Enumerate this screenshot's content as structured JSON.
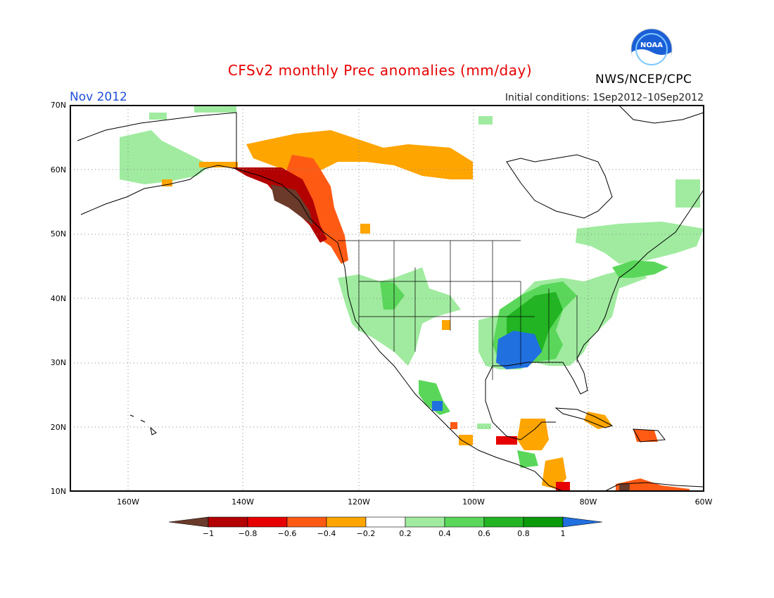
{
  "header": {
    "title": "CFSv2 monthly Prec anomalies (mm/day)",
    "month": "Nov 2012",
    "initial_conditions": "Initial conditions: 1Sep2012–10Sep2012",
    "agency": "NWS/NCEP/CPC",
    "logo_text": "NOAA"
  },
  "axes": {
    "lat_labels": [
      "70N",
      "60N",
      "50N",
      "40N",
      "30N",
      "20N",
      "10N"
    ],
    "lon_labels": [
      "160W",
      "140W",
      "120W",
      "100W",
      "80W",
      "60W"
    ]
  },
  "colorbar": {
    "labels": [
      "−1",
      "−0.8",
      "−0.6",
      "−0.4",
      "−0.2",
      "0.2",
      "0.4",
      "0.6",
      "0.8",
      "1"
    ],
    "colors": [
      "#6b3a2a",
      "#b30000",
      "#e60000",
      "#ff5a14",
      "#ffa500",
      "#ffffff",
      "#a0eba0",
      "#5ad75a",
      "#22b422",
      "#0a9a0a",
      "#2070e0"
    ]
  },
  "map": {
    "land_outline_color": "#000000",
    "grid_color": "#888888"
  }
}
